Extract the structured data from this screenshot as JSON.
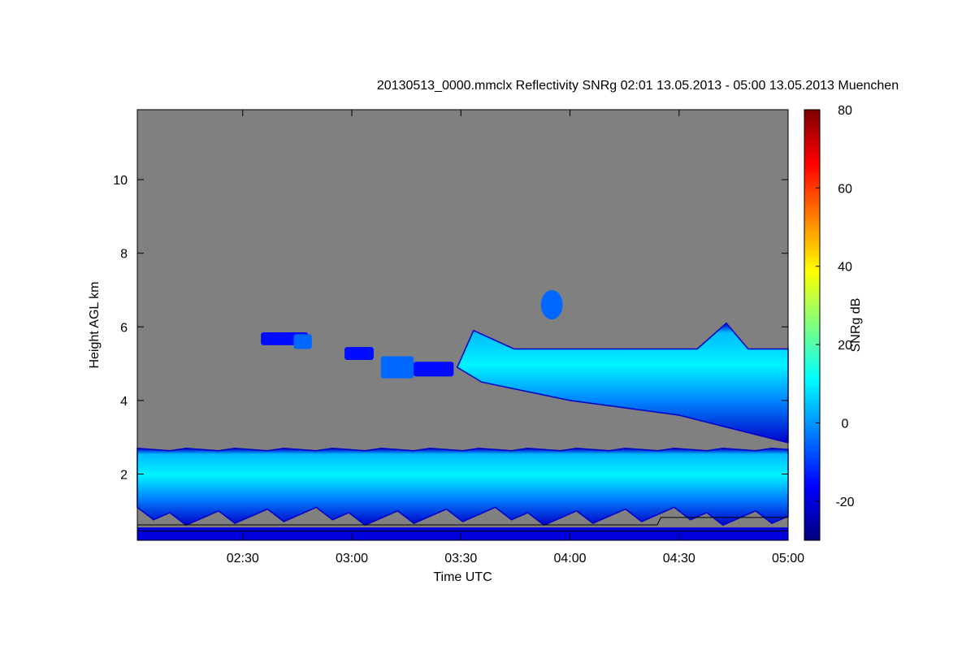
{
  "chart_data": {
    "type": "heatmap",
    "title": "20130513_0000.mmclx Reflectivity SNRg   02:01 13.05.2013 - 05:00 13.05.2013 Muenchen",
    "xlabel": "Time UTC",
    "ylabel": "Height AGL km",
    "x_tick_labels": [
      "02:30",
      "03:00",
      "03:30",
      "04:00",
      "04:30",
      "05:00"
    ],
    "x_tick_minutes": [
      150,
      180,
      210,
      240,
      270,
      300
    ],
    "xlim_minutes": [
      121,
      300
    ],
    "y_ticks": [
      2,
      4,
      6,
      8,
      10
    ],
    "ylim": [
      0.2,
      11.9
    ],
    "background_color": "#808080",
    "colorbar": {
      "label": "SNRg dB",
      "ticks": [
        -20,
        0,
        20,
        40,
        60,
        80
      ],
      "range": [
        -30,
        80
      ],
      "colormap": [
        "#00007f",
        "#0000ff",
        "#007fff",
        "#00ffff",
        "#7fff7f",
        "#ffff00",
        "#ff7f00",
        "#ff0000",
        "#7f0000"
      ]
    },
    "layers": [
      {
        "name": "low cloud",
        "start_min": 121,
        "end_min": 300,
        "base_km": 0.7,
        "top_km": 2.7,
        "snr_db": 5
      },
      {
        "name": "mid cloud",
        "start_min": 209,
        "end_min": 300,
        "base_km": 3.0,
        "top_km": 5.4,
        "snr_db": 5
      },
      {
        "name": "fragments",
        "start_min": 155,
        "end_min": 208,
        "base_km": 4.6,
        "top_km": 5.8,
        "snr_db": -10
      },
      {
        "name": "upper patch",
        "start_min": 232,
        "end_min": 238,
        "base_km": 6.2,
        "top_km": 7.0,
        "snr_db": -5
      }
    ]
  }
}
